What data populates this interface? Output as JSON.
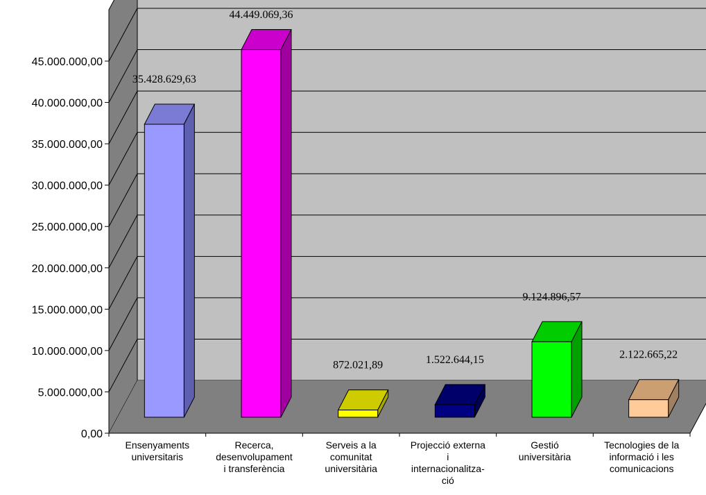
{
  "chart_data": {
    "type": "bar",
    "style": "3d-column",
    "categories": [
      [
        "Ensenyaments",
        "universitaris"
      ],
      [
        "Recerca,",
        "desenvolupament",
        "i transferència"
      ],
      [
        "Serveis a la",
        "comunitat",
        "universitària"
      ],
      [
        "Projecció externa",
        "i",
        "internacionalitza-",
        "ció"
      ],
      [
        "Gestió",
        "universitària"
      ],
      [
        "Tecnologies de la",
        "informació i les",
        "comunicacions"
      ]
    ],
    "values": [
      35428629.63,
      44449069.36,
      872021.89,
      1522644.15,
      9124896.57,
      2122665.22
    ],
    "data_labels": [
      "35.428.629,63",
      "44.449.069,36",
      "872.021,89",
      "1.522.644,15",
      "9.124.896,57",
      "2.122.665,22"
    ],
    "y_ticks": [
      "0,00",
      "5.000.000,00",
      "10.000.000,00",
      "15.000.000,00",
      "20.000.000,00",
      "25.000.000,00",
      "30.000.000,00",
      "35.000.000,00",
      "40.000.000,00",
      "45.000.000,00"
    ],
    "ylim": [
      0,
      45000000
    ],
    "grid": true,
    "legend": "none",
    "colors": {
      "bars": [
        {
          "front": "#9999ff",
          "side": "#5f5fb0",
          "top": "#7b7bd6"
        },
        {
          "front": "#ff00ff",
          "side": "#a000a0",
          "top": "#cc00cc"
        },
        {
          "front": "#ffff00",
          "side": "#a8a800",
          "top": "#cccc00"
        },
        {
          "front": "#000080",
          "side": "#000050",
          "top": "#00006a"
        },
        {
          "front": "#00ff00",
          "side": "#00a000",
          "top": "#00cc00"
        },
        {
          "front": "#ffcc99",
          "side": "#a08060",
          "top": "#cc9f73"
        }
      ],
      "back_wall": "#c0c0c0",
      "side_wall": "#808080",
      "floor": "#808080",
      "gridline": "#000000"
    }
  }
}
